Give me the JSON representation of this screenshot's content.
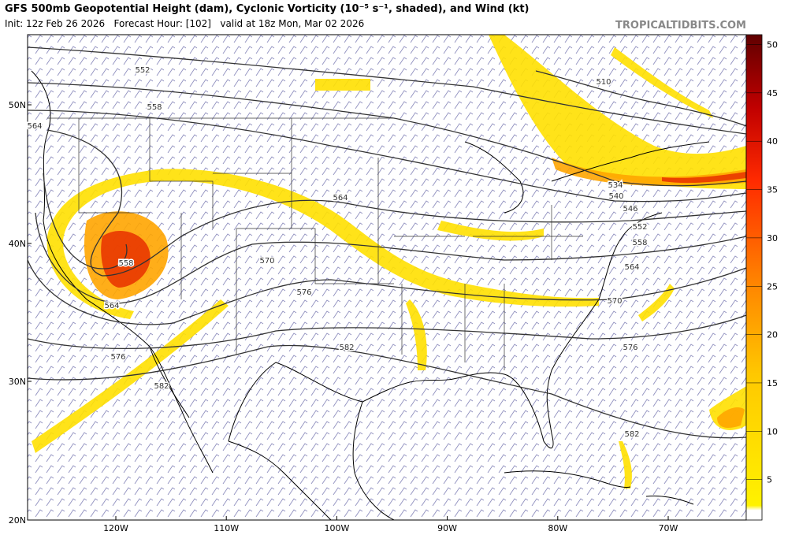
{
  "header": {
    "title": "GFS 500mb Geopotential Height (dam), Cyclonic Vorticity (10⁻⁵ s⁻¹, shaded), and Wind (kt)",
    "subtitle": "Init: 12z Feb 26 2026   Forecast Hour: [102]   valid at 18z Mon, Mar 02 2026",
    "watermark": "TROPICALTIDBITS.COM"
  },
  "axes": {
    "lat_labels": [
      "50N",
      "40N",
      "30N",
      "20N"
    ],
    "lon_labels": [
      "120W",
      "110W",
      "100W",
      "90W",
      "80W",
      "70W"
    ]
  },
  "colorbar": {
    "ticks": [
      5,
      10,
      15,
      20,
      25,
      30,
      35,
      40,
      45,
      50
    ]
  },
  "contour_labels": [
    "552",
    "558",
    "564",
    "564",
    "558",
    "564",
    "570",
    "576",
    "582",
    "576",
    "582",
    "510",
    "534",
    "540",
    "546",
    "552",
    "558",
    "564",
    "570",
    "576",
    "582"
  ]
}
